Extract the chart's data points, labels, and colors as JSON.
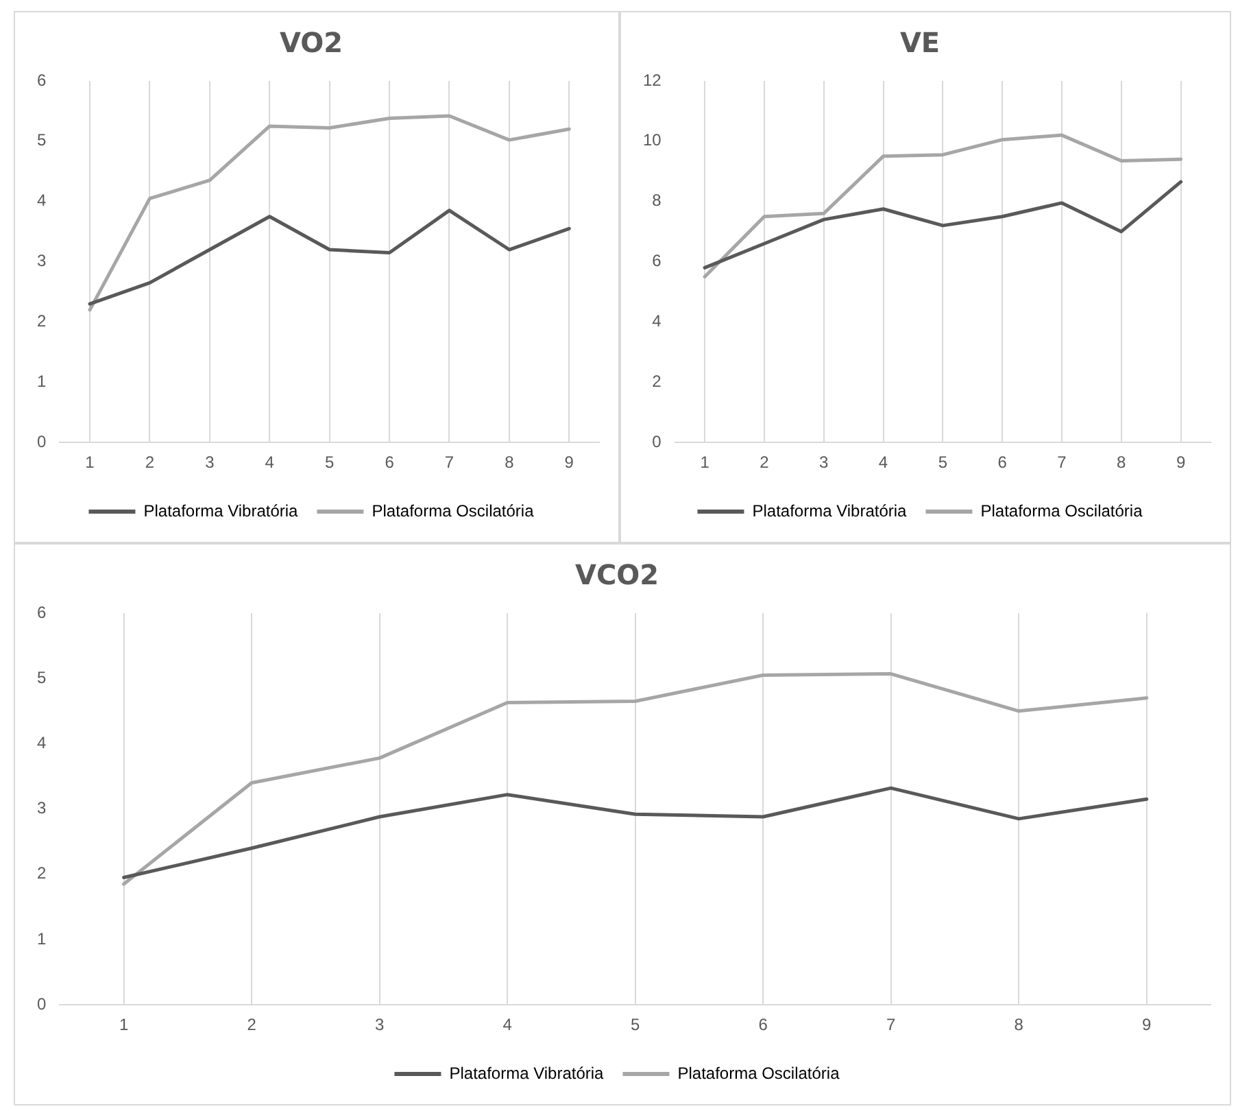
{
  "chart_data": [
    {
      "type": "line",
      "title": "VO2",
      "categories": [
        "1",
        "2",
        "3",
        "4",
        "5",
        "6",
        "7",
        "8",
        "9"
      ],
      "series": [
        {
          "name": "Plataforma Vibratória",
          "color": "#595959",
          "values": [
            2.3,
            2.65,
            3.2,
            3.75,
            3.2,
            3.15,
            3.85,
            3.2,
            3.55
          ]
        },
        {
          "name": "Plataforma Oscilatória",
          "color": "#a6a6a6",
          "values": [
            2.2,
            4.05,
            4.35,
            5.25,
            5.22,
            5.38,
            5.42,
            5.02,
            5.2
          ]
        }
      ],
      "ylim": [
        0,
        6
      ],
      "yticks": [
        0,
        1,
        2,
        3,
        4,
        5,
        6
      ],
      "grid": "x",
      "legend": "bottom",
      "marker": "none",
      "line_style": "solid"
    },
    {
      "type": "line",
      "title": "VE",
      "categories": [
        "1",
        "2",
        "3",
        "4",
        "5",
        "6",
        "7",
        "8",
        "9"
      ],
      "series": [
        {
          "name": "Plataforma Vibratória",
          "color": "#595959",
          "values": [
            5.8,
            6.6,
            7.4,
            7.75,
            7.2,
            7.5,
            7.95,
            7.0,
            8.65
          ]
        },
        {
          "name": "Plataforma Oscilatória",
          "color": "#a6a6a6",
          "values": [
            5.5,
            7.5,
            7.6,
            9.5,
            9.55,
            10.05,
            10.2,
            9.35,
            9.4
          ]
        }
      ],
      "ylim": [
        0,
        12
      ],
      "yticks": [
        0,
        2,
        4,
        6,
        8,
        10,
        12
      ],
      "grid": "x",
      "legend": "bottom",
      "marker": "none",
      "line_style": "solid"
    },
    {
      "type": "line",
      "title": "VCO2",
      "categories": [
        "1",
        "2",
        "3",
        "4",
        "5",
        "6",
        "7",
        "8",
        "9"
      ],
      "series": [
        {
          "name": "Plataforma Vibratória",
          "color": "#595959",
          "values": [
            1.95,
            2.4,
            2.88,
            3.22,
            2.92,
            2.88,
            3.32,
            2.85,
            3.15
          ]
        },
        {
          "name": "Plataforma Oscilatória",
          "color": "#a6a6a6",
          "values": [
            1.85,
            3.4,
            3.78,
            4.63,
            4.65,
            5.05,
            5.07,
            4.5,
            4.7
          ]
        }
      ],
      "ylim": [
        0,
        6
      ],
      "yticks": [
        0,
        1,
        2,
        3,
        4,
        5,
        6
      ],
      "grid": "x",
      "legend": "bottom",
      "marker": "none",
      "line_style": "solid"
    }
  ]
}
